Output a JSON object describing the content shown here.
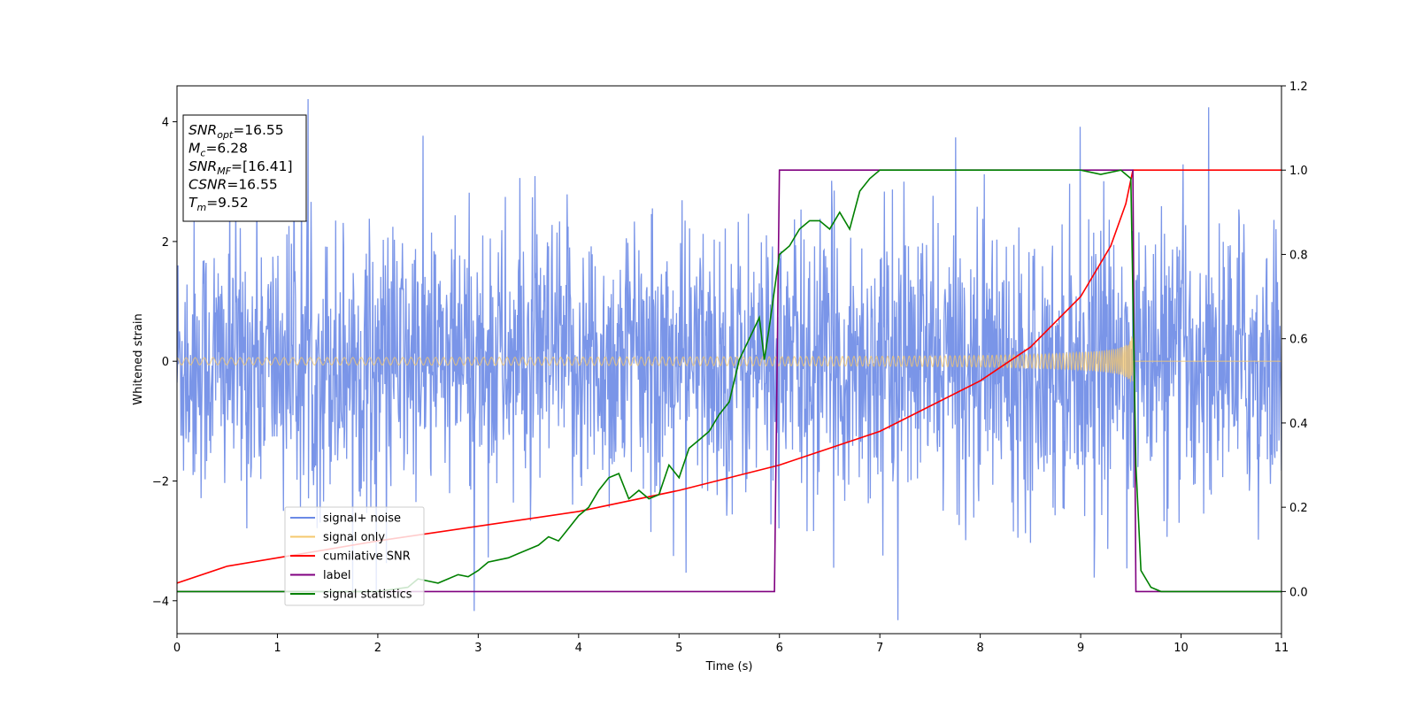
{
  "chart_data": {
    "type": "line",
    "xlabel": "Time (s)",
    "ylabel": "Whitened strain",
    "xlim": [
      0,
      11
    ],
    "ylim": [
      -4.55,
      4.6
    ],
    "y2lim": [
      -0.1,
      1.2
    ],
    "x_ticks": [
      "0",
      "1",
      "2",
      "3",
      "4",
      "5",
      "6",
      "7",
      "8",
      "9",
      "10",
      "11"
    ],
    "y_ticks": [
      "−4",
      "−2",
      "0",
      "2",
      "4"
    ],
    "y2_ticks": [
      "0.0",
      "0.2",
      "0.4",
      "0.6",
      "0.8",
      "1.0",
      "1.2"
    ],
    "legend_position": "lower-left",
    "stats_box": {
      "position": "upper-left",
      "lines": [
        {
          "var": "SNR",
          "sub": "opt",
          "value": "=16.55"
        },
        {
          "var": "M",
          "sub": "c",
          "value": "=6.28"
        },
        {
          "var": "SNR",
          "sub": "MF",
          "value": "=[16.41]"
        },
        {
          "var": "CSNR",
          "sub": "",
          "value": "=16.55"
        },
        {
          "var": "T",
          "sub": "m",
          "value": "=9.52"
        }
      ]
    },
    "series": [
      {
        "name": "signal+ noise",
        "color": "#6b8ae6",
        "axis": "left",
        "kind": "noise",
        "sample_rate_hz": 200,
        "noise_std": 1.15,
        "x_range": [
          0,
          11
        ]
      },
      {
        "name": "signal only",
        "color": "#f5c86e",
        "axis": "left",
        "kind": "chirp",
        "merger_time": 9.52,
        "amplitude_start": 0.06,
        "amplitude_peak": 1.15,
        "x_range": [
          0,
          11
        ]
      },
      {
        "name": "cumilative SNR",
        "color": "#ff0000",
        "axis": "right",
        "points": [
          [
            0,
            0.02
          ],
          [
            0.5,
            0.06
          ],
          [
            1,
            0.08
          ],
          [
            2,
            0.12
          ],
          [
            3,
            0.155
          ],
          [
            4,
            0.19
          ],
          [
            5,
            0.24
          ],
          [
            6,
            0.3
          ],
          [
            7,
            0.38
          ],
          [
            8,
            0.5
          ],
          [
            8.5,
            0.58
          ],
          [
            9,
            0.7
          ],
          [
            9.3,
            0.82
          ],
          [
            9.45,
            0.92
          ],
          [
            9.52,
            1.0
          ],
          [
            11,
            1.0
          ]
        ]
      },
      {
        "name": "label",
        "color": "#800080",
        "axis": "right",
        "points": [
          [
            0,
            0.0
          ],
          [
            5.95,
            0.0
          ],
          [
            6.0,
            1.0
          ],
          [
            9.46,
            1.0
          ],
          [
            9.52,
            1.0
          ],
          [
            9.55,
            0.0
          ],
          [
            11,
            0.0
          ]
        ]
      },
      {
        "name": "signal statistics",
        "color": "#008000",
        "axis": "right",
        "points": [
          [
            0,
            0.0
          ],
          [
            1,
            0.0
          ],
          [
            2,
            0.0
          ],
          [
            2.3,
            0.01
          ],
          [
            2.4,
            0.03
          ],
          [
            2.5,
            0.025
          ],
          [
            2.6,
            0.02
          ],
          [
            2.7,
            0.03
          ],
          [
            2.8,
            0.04
          ],
          [
            2.9,
            0.035
          ],
          [
            3.0,
            0.05
          ],
          [
            3.1,
            0.07
          ],
          [
            3.2,
            0.075
          ],
          [
            3.3,
            0.08
          ],
          [
            3.4,
            0.09
          ],
          [
            3.5,
            0.1
          ],
          [
            3.6,
            0.11
          ],
          [
            3.7,
            0.13
          ],
          [
            3.8,
            0.12
          ],
          [
            3.9,
            0.15
          ],
          [
            4.0,
            0.18
          ],
          [
            4.1,
            0.2
          ],
          [
            4.2,
            0.24
          ],
          [
            4.3,
            0.27
          ],
          [
            4.4,
            0.28
          ],
          [
            4.5,
            0.22
          ],
          [
            4.6,
            0.24
          ],
          [
            4.7,
            0.22
          ],
          [
            4.8,
            0.23
          ],
          [
            4.9,
            0.3
          ],
          [
            5.0,
            0.27
          ],
          [
            5.1,
            0.34
          ],
          [
            5.2,
            0.36
          ],
          [
            5.3,
            0.38
          ],
          [
            5.4,
            0.42
          ],
          [
            5.5,
            0.45
          ],
          [
            5.6,
            0.55
          ],
          [
            5.7,
            0.6
          ],
          [
            5.8,
            0.65
          ],
          [
            5.85,
            0.55
          ],
          [
            5.9,
            0.63
          ],
          [
            6.0,
            0.8
          ],
          [
            6.1,
            0.82
          ],
          [
            6.2,
            0.86
          ],
          [
            6.3,
            0.88
          ],
          [
            6.4,
            0.88
          ],
          [
            6.5,
            0.86
          ],
          [
            6.6,
            0.9
          ],
          [
            6.7,
            0.86
          ],
          [
            6.8,
            0.95
          ],
          [
            6.9,
            0.98
          ],
          [
            7.0,
            1.0
          ],
          [
            7.5,
            1.0
          ],
          [
            8.0,
            1.0
          ],
          [
            9.0,
            1.0
          ],
          [
            9.2,
            0.99
          ],
          [
            9.4,
            1.0
          ],
          [
            9.5,
            0.98
          ],
          [
            9.55,
            0.3
          ],
          [
            9.6,
            0.05
          ],
          [
            9.7,
            0.01
          ],
          [
            9.8,
            0.0
          ],
          [
            11,
            0.0
          ]
        ]
      }
    ]
  }
}
